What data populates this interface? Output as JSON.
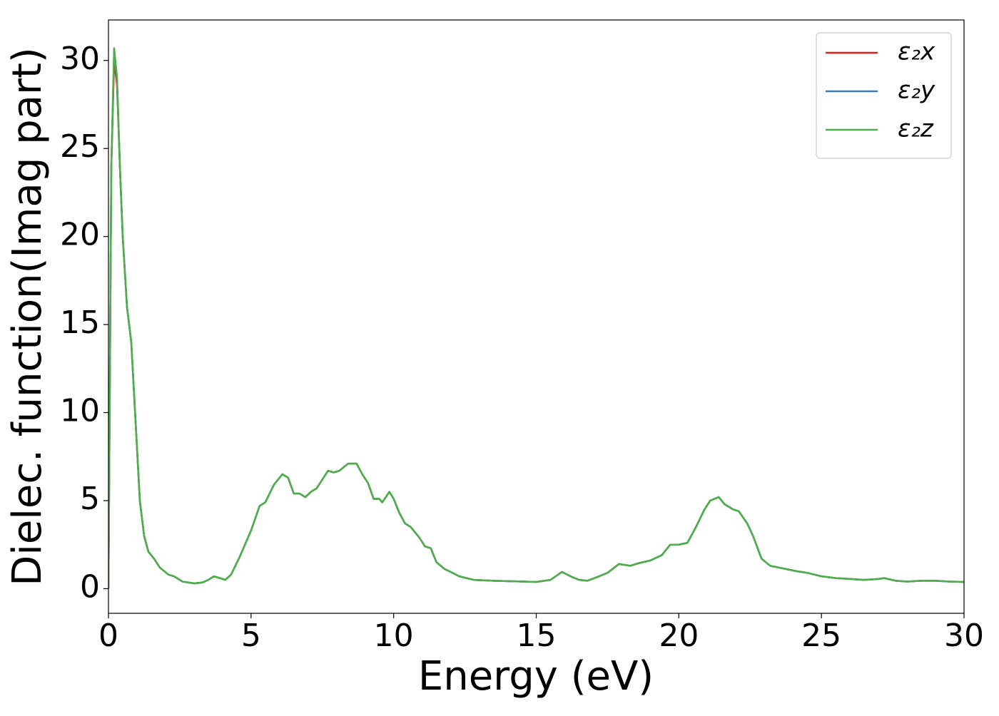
{
  "chart_data": {
    "type": "line",
    "xlabel": "Energy (eV)",
    "ylabel": "Dielec. function(Imag part)",
    "x": [
      0,
      0.05,
      0.1,
      0.2,
      0.3,
      0.4,
      0.5,
      0.65,
      0.8,
      0.9,
      1.0,
      1.1,
      1.25,
      1.4,
      1.6,
      1.8,
      2.1,
      2.3,
      2.6,
      3.0,
      3.3,
      3.5,
      3.7,
      3.9,
      4.1,
      4.3,
      4.6,
      5.0,
      5.3,
      5.5,
      5.8,
      6.1,
      6.3,
      6.5,
      6.7,
      6.9,
      7.1,
      7.3,
      7.5,
      7.7,
      7.9,
      8.1,
      8.4,
      8.7,
      8.9,
      9.1,
      9.3,
      9.5,
      9.6,
      9.85,
      10.0,
      10.2,
      10.4,
      10.6,
      10.9,
      11.1,
      11.3,
      11.5,
      11.8,
      12.0,
      12.3,
      12.8,
      13.5,
      14.2,
      15.0,
      15.5,
      15.9,
      16.2,
      16.5,
      16.8,
      17.2,
      17.5,
      17.9,
      18.3,
      18.6,
      19.0,
      19.4,
      19.7,
      20.0,
      20.3,
      20.6,
      20.9,
      21.1,
      21.4,
      21.6,
      21.9,
      22.1,
      22.4,
      22.6,
      22.9,
      23.2,
      23.5,
      23.8,
      24.1,
      24.5,
      25.0,
      25.5,
      26.0,
      26.5,
      27.0,
      27.2,
      27.6,
      28.0,
      28.5,
      29.0,
      29.5,
      30.0
    ],
    "series": [
      {
        "name": "ε₂x",
        "color": "#e41a1c",
        "values": [
          0,
          12,
          24,
          30.0,
          28.6,
          24,
          20,
          16,
          14,
          11,
          8,
          5,
          3,
          2.1,
          1.7,
          1.2,
          0.8,
          0.7,
          0.4,
          0.3,
          0.35,
          0.5,
          0.7,
          0.6,
          0.5,
          0.8,
          1.8,
          3.3,
          4.7,
          4.9,
          5.9,
          6.5,
          6.3,
          5.4,
          5.4,
          5.2,
          5.5,
          5.7,
          6.2,
          6.7,
          6.6,
          6.7,
          7.1,
          7.1,
          6.5,
          6.0,
          5.1,
          5.1,
          4.9,
          5.5,
          5.1,
          4.3,
          3.7,
          3.5,
          2.9,
          2.4,
          2.3,
          1.5,
          1.1,
          0.95,
          0.7,
          0.5,
          0.45,
          0.42,
          0.38,
          0.5,
          0.95,
          0.7,
          0.5,
          0.45,
          0.7,
          0.9,
          1.4,
          1.3,
          1.45,
          1.6,
          1.9,
          2.5,
          2.5,
          2.6,
          3.5,
          4.5,
          5.0,
          5.2,
          4.8,
          4.5,
          4.4,
          3.7,
          3.0,
          1.7,
          1.3,
          1.2,
          1.1,
          1.0,
          0.9,
          0.7,
          0.6,
          0.55,
          0.5,
          0.55,
          0.6,
          0.45,
          0.4,
          0.45,
          0.45,
          0.4,
          0.38
        ]
      },
      {
        "name": "ε₂y",
        "color": "#377eb8",
        "values": [
          0,
          12,
          24,
          30.6,
          29,
          24,
          20,
          16,
          14,
          11,
          8,
          5,
          3,
          2.1,
          1.7,
          1.2,
          0.8,
          0.7,
          0.4,
          0.3,
          0.35,
          0.5,
          0.7,
          0.6,
          0.5,
          0.8,
          1.8,
          3.3,
          4.7,
          4.9,
          5.9,
          6.5,
          6.3,
          5.4,
          5.4,
          5.2,
          5.5,
          5.7,
          6.2,
          6.7,
          6.6,
          6.7,
          7.1,
          7.1,
          6.5,
          6.0,
          5.1,
          5.1,
          4.9,
          5.5,
          5.1,
          4.3,
          3.7,
          3.5,
          2.9,
          2.4,
          2.3,
          1.5,
          1.1,
          0.95,
          0.7,
          0.5,
          0.45,
          0.42,
          0.38,
          0.5,
          0.95,
          0.7,
          0.5,
          0.45,
          0.7,
          0.9,
          1.4,
          1.3,
          1.45,
          1.6,
          1.9,
          2.5,
          2.5,
          2.6,
          3.5,
          4.5,
          5.0,
          5.2,
          4.8,
          4.5,
          4.4,
          3.7,
          3.0,
          1.7,
          1.3,
          1.2,
          1.1,
          1.0,
          0.9,
          0.7,
          0.6,
          0.55,
          0.5,
          0.55,
          0.6,
          0.45,
          0.4,
          0.45,
          0.45,
          0.4,
          0.38
        ]
      },
      {
        "name": "ε₂z",
        "color": "#4daf4a",
        "values": [
          0,
          12,
          24,
          30.7,
          29,
          24,
          20,
          16,
          14,
          11,
          8,
          5,
          3,
          2.1,
          1.7,
          1.2,
          0.8,
          0.7,
          0.4,
          0.3,
          0.35,
          0.5,
          0.7,
          0.6,
          0.5,
          0.8,
          1.8,
          3.3,
          4.7,
          4.9,
          5.9,
          6.5,
          6.3,
          5.4,
          5.4,
          5.2,
          5.5,
          5.7,
          6.2,
          6.7,
          6.6,
          6.7,
          7.1,
          7.1,
          6.5,
          6.0,
          5.1,
          5.1,
          4.9,
          5.5,
          5.1,
          4.3,
          3.7,
          3.5,
          2.9,
          2.4,
          2.3,
          1.5,
          1.1,
          0.95,
          0.7,
          0.5,
          0.45,
          0.42,
          0.38,
          0.5,
          0.95,
          0.7,
          0.5,
          0.45,
          0.7,
          0.9,
          1.4,
          1.3,
          1.45,
          1.6,
          1.9,
          2.5,
          2.5,
          2.6,
          3.5,
          4.5,
          5.0,
          5.2,
          4.8,
          4.5,
          4.4,
          3.7,
          3.0,
          1.7,
          1.3,
          1.2,
          1.1,
          1.0,
          0.9,
          0.7,
          0.6,
          0.55,
          0.5,
          0.55,
          0.6,
          0.45,
          0.4,
          0.45,
          0.45,
          0.4,
          0.38
        ]
      }
    ],
    "xlim": [
      0,
      30
    ],
    "xticks": [
      0,
      5,
      10,
      15,
      20,
      25,
      30
    ],
    "ylim": [
      -1.4,
      32.3
    ],
    "yticks": [
      0,
      5,
      10,
      15,
      20,
      25,
      30
    ],
    "grid": false,
    "legend": "upper right"
  }
}
